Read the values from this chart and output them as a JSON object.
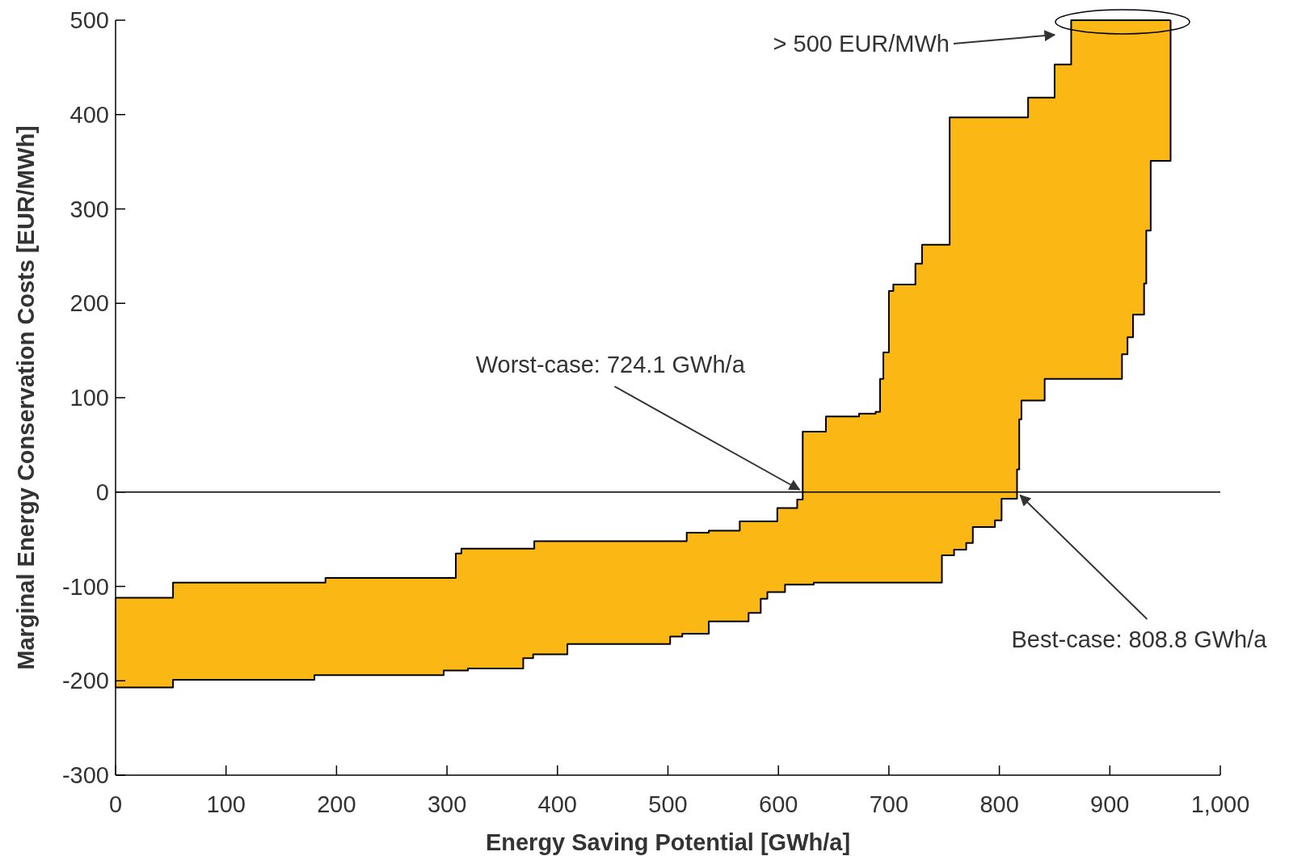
{
  "chart_data": {
    "type": "line",
    "xlabel": "Energy Saving Potential [GWh/a]",
    "ylabel": "Marginal Energy Conservation Costs [EUR/MWh]",
    "xlim": [
      0,
      1000
    ],
    "xticks": [
      0,
      100,
      200,
      300,
      400,
      500,
      600,
      700,
      800,
      900,
      {
        "value": 1000,
        "label": "1,000"
      }
    ],
    "ylim": [
      -300,
      500
    ],
    "yticks": [
      -300,
      -200,
      -100,
      0,
      100,
      200,
      300,
      400,
      500
    ],
    "series": [
      {
        "color": "#000000",
        "x": [
          0,
          52,
          52,
          180,
          180,
          190,
          190,
          297,
          297,
          308,
          308,
          313,
          313,
          319,
          319,
          369,
          369,
          378,
          378,
          379,
          379,
          409,
          409,
          502,
          502,
          513,
          513,
          517,
          517,
          537,
          537,
          565,
          565,
          573,
          573,
          584,
          584,
          590,
          590,
          599,
          599,
          606,
          606,
          617,
          617,
          622,
          622,
          632,
          632,
          643,
          643,
          673,
          673,
          688,
          688,
          692,
          692,
          695,
          695,
          700,
          700,
          704,
          704,
          724,
          724,
          730,
          730,
          748,
          748,
          755,
          755,
          759,
          759,
          770,
          770,
          776,
          776,
          796,
          796,
          802,
          802,
          816,
          816,
          818,
          818,
          820,
          820,
          826,
          826,
          841,
          841,
          850,
          850,
          865,
          865,
          911,
          911,
          916,
          916,
          921,
          921,
          931,
          931,
          933,
          933,
          937,
          937,
          955,
          955
        ],
        "values": [
          -112,
          -112,
          -96,
          -96,
          -96,
          -96,
          -91,
          -91,
          -91,
          -91,
          -65,
          -65,
          -60,
          -60,
          -60,
          -60,
          -60,
          -60,
          -60,
          -60,
          -52,
          -52,
          -52,
          -52,
          -52,
          -52,
          -52,
          -52,
          -43,
          -43,
          -41,
          -41,
          -31,
          -31,
          -31,
          -31,
          -31,
          -31,
          -31,
          -31,
          -17,
          -17,
          -17,
          -17,
          -8,
          -8,
          64,
          64,
          64,
          64,
          80,
          80,
          83,
          83,
          85,
          85,
          120,
          120,
          148,
          148,
          213,
          213,
          220,
          220,
          242,
          242,
          262,
          262,
          262,
          262,
          397,
          397,
          397,
          397,
          397,
          397,
          397,
          397,
          397,
          397,
          397,
          397,
          397,
          397,
          397,
          397,
          397,
          397,
          418,
          418,
          418,
          418,
          453,
          453,
          500,
          500,
          500,
          500,
          500,
          500,
          500,
          500,
          500,
          500,
          500,
          500,
          500,
          500,
          500
        ],
        "upper": [
          -112,
          -112,
          -96,
          -96,
          -96,
          -96,
          -91,
          -91,
          -91,
          -91,
          -65,
          -65,
          -60,
          -60,
          -60,
          -60,
          -60,
          -60,
          -60,
          -60,
          -52,
          -52,
          -52,
          -52,
          -52,
          -52,
          -52,
          -52,
          -43,
          -43,
          -41,
          -41,
          -31,
          -31,
          -31,
          -31,
          -31,
          -31,
          -31,
          -31,
          -17,
          -17,
          -17,
          -17,
          -8,
          -8,
          64,
          64,
          64,
          64,
          80,
          80,
          83,
          83,
          85,
          85,
          120,
          120,
          148,
          148,
          213,
          213,
          220,
          220,
          242,
          242,
          262,
          262,
          262,
          262,
          397,
          397,
          397,
          397,
          397,
          397,
          397,
          397,
          397,
          397,
          397,
          397,
          397,
          397,
          397,
          397,
          397,
          397,
          418,
          418,
          418,
          418,
          453,
          453,
          500,
          500,
          500,
          500,
          500,
          500,
          500,
          500,
          500,
          500,
          500,
          500,
          500,
          500,
          500
        ],
        "lower": [
          -207,
          -207,
          -199,
          -199,
          -194,
          -194,
          -194,
          -194,
          -189,
          -189,
          -189,
          -189,
          -189,
          -189,
          -187,
          -187,
          -176,
          -176,
          -172,
          -172,
          -172,
          -172,
          -161,
          -161,
          -153,
          -153,
          -150,
          -150,
          -150,
          -150,
          -137,
          -137,
          -137,
          -137,
          -128,
          -128,
          -113,
          -113,
          -106,
          -106,
          -106,
          -106,
          -98,
          -98,
          -98,
          -98,
          -98,
          -98,
          -96,
          -96,
          -96,
          -96,
          -96,
          -96,
          -96,
          -96,
          -96,
          -96,
          -96,
          -96,
          -96,
          -96,
          -96,
          -96,
          -96,
          -96,
          -96,
          -96,
          -67,
          -67,
          -67,
          -67,
          -61,
          -61,
          -54,
          -54,
          -37,
          -37,
          -30,
          -30,
          -7,
          -7,
          24,
          24,
          77,
          77,
          97,
          97,
          97,
          97,
          120,
          120,
          120,
          120,
          120,
          120,
          146,
          146,
          164,
          164,
          188,
          188,
          221,
          221,
          277,
          277,
          351,
          351,
          500
        ]
      },
      {
        "color": "#000000",
        "x": [
          0,
          52,
          52,
          180,
          180,
          190,
          190,
          297,
          297,
          308,
          308,
          313,
          313,
          319,
          319,
          369,
          369,
          378,
          378,
          379,
          379,
          409,
          409,
          502,
          502,
          513,
          513,
          517,
          517,
          537,
          537,
          565,
          565,
          573,
          573,
          584,
          584,
          590,
          590,
          599,
          599,
          606,
          606,
          617,
          617,
          622,
          622,
          632,
          632,
          643,
          643,
          673,
          673,
          688,
          688,
          692,
          692,
          695,
          695,
          700,
          700,
          704,
          704,
          724,
          724,
          730,
          730,
          748,
          748,
          755,
          755,
          759,
          759,
          770,
          770,
          776,
          776,
          796,
          796,
          802,
          802,
          816,
          816,
          818,
          818,
          820,
          820,
          826,
          826,
          841,
          841,
          850,
          850,
          865,
          865,
          911,
          911,
          916,
          916,
          921,
          921,
          931,
          931,
          933,
          933,
          937,
          937,
          955,
          955
        ],
        "values": [
          -207,
          -207,
          -199,
          -199,
          -194,
          -194,
          -194,
          -194,
          -189,
          -189,
          -189,
          -189,
          -189,
          -189,
          -187,
          -187,
          -176,
          -176,
          -172,
          -172,
          -172,
          -172,
          -161,
          -161,
          -153,
          -153,
          -150,
          -150,
          -150,
          -150,
          -137,
          -137,
          -137,
          -137,
          -128,
          -128,
          -113,
          -113,
          -106,
          -106,
          -106,
          -106,
          -98,
          -98,
          -98,
          -98,
          -98,
          -98,
          -96,
          -96,
          -96,
          -96,
          -96,
          -96,
          -96,
          -96,
          -96,
          -96,
          -96,
          -96,
          -96,
          -96,
          -96,
          -96,
          -96,
          -96,
          -96,
          -96,
          -67,
          -67,
          -67,
          -67,
          -61,
          -61,
          -54,
          -54,
          -37,
          -37,
          -30,
          -30,
          -7,
          -7,
          24,
          24,
          77,
          77,
          97,
          97,
          97,
          97,
          120,
          120,
          120,
          120,
          120,
          120,
          146,
          146,
          164,
          164,
          188,
          188,
          221,
          221,
          277,
          277,
          351,
          351,
          500
        ]
      }
    ],
    "ref_lines": [
      {
        "axis": "y",
        "value": 0,
        "color": "#000000"
      }
    ],
    "annotations": [
      {
        "text": "Worst-case: 724.1 GWh/a",
        "x": 622,
        "y": 0
      },
      {
        "text": "Best-case: 808.8 GWh/a",
        "x": 816,
        "y": 0
      },
      "> 500 EUR/MWh"
    ],
    "grid": false
  }
}
